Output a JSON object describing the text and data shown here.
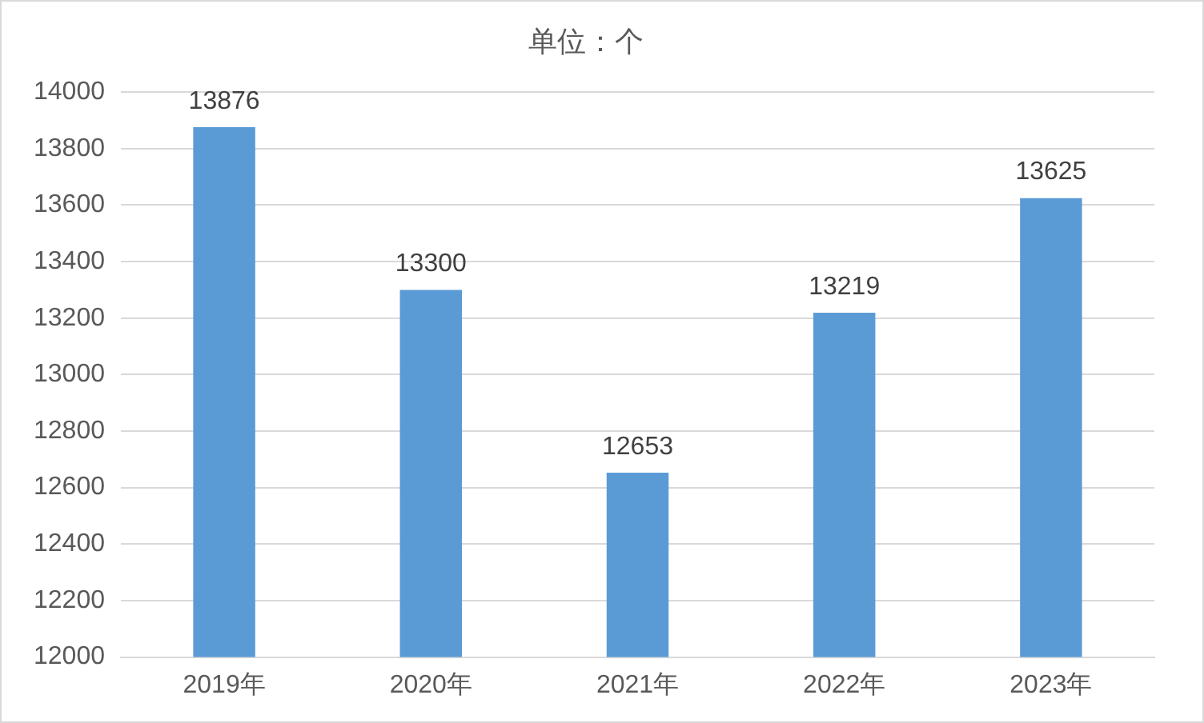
{
  "chart_data": {
    "type": "bar",
    "title": "单位：个",
    "categories": [
      "2019年",
      "2020年",
      "2021年",
      "2022年",
      "2023年"
    ],
    "values": [
      13876,
      13300,
      12653,
      13219,
      13625
    ],
    "color": "#5b9bd5",
    "ylim": [
      12000,
      14000
    ],
    "yticks": [
      12000,
      12200,
      12400,
      12600,
      12800,
      13000,
      13200,
      13400,
      13600,
      13800,
      14000
    ],
    "grid": "y",
    "data_labels": true,
    "legend": false
  }
}
